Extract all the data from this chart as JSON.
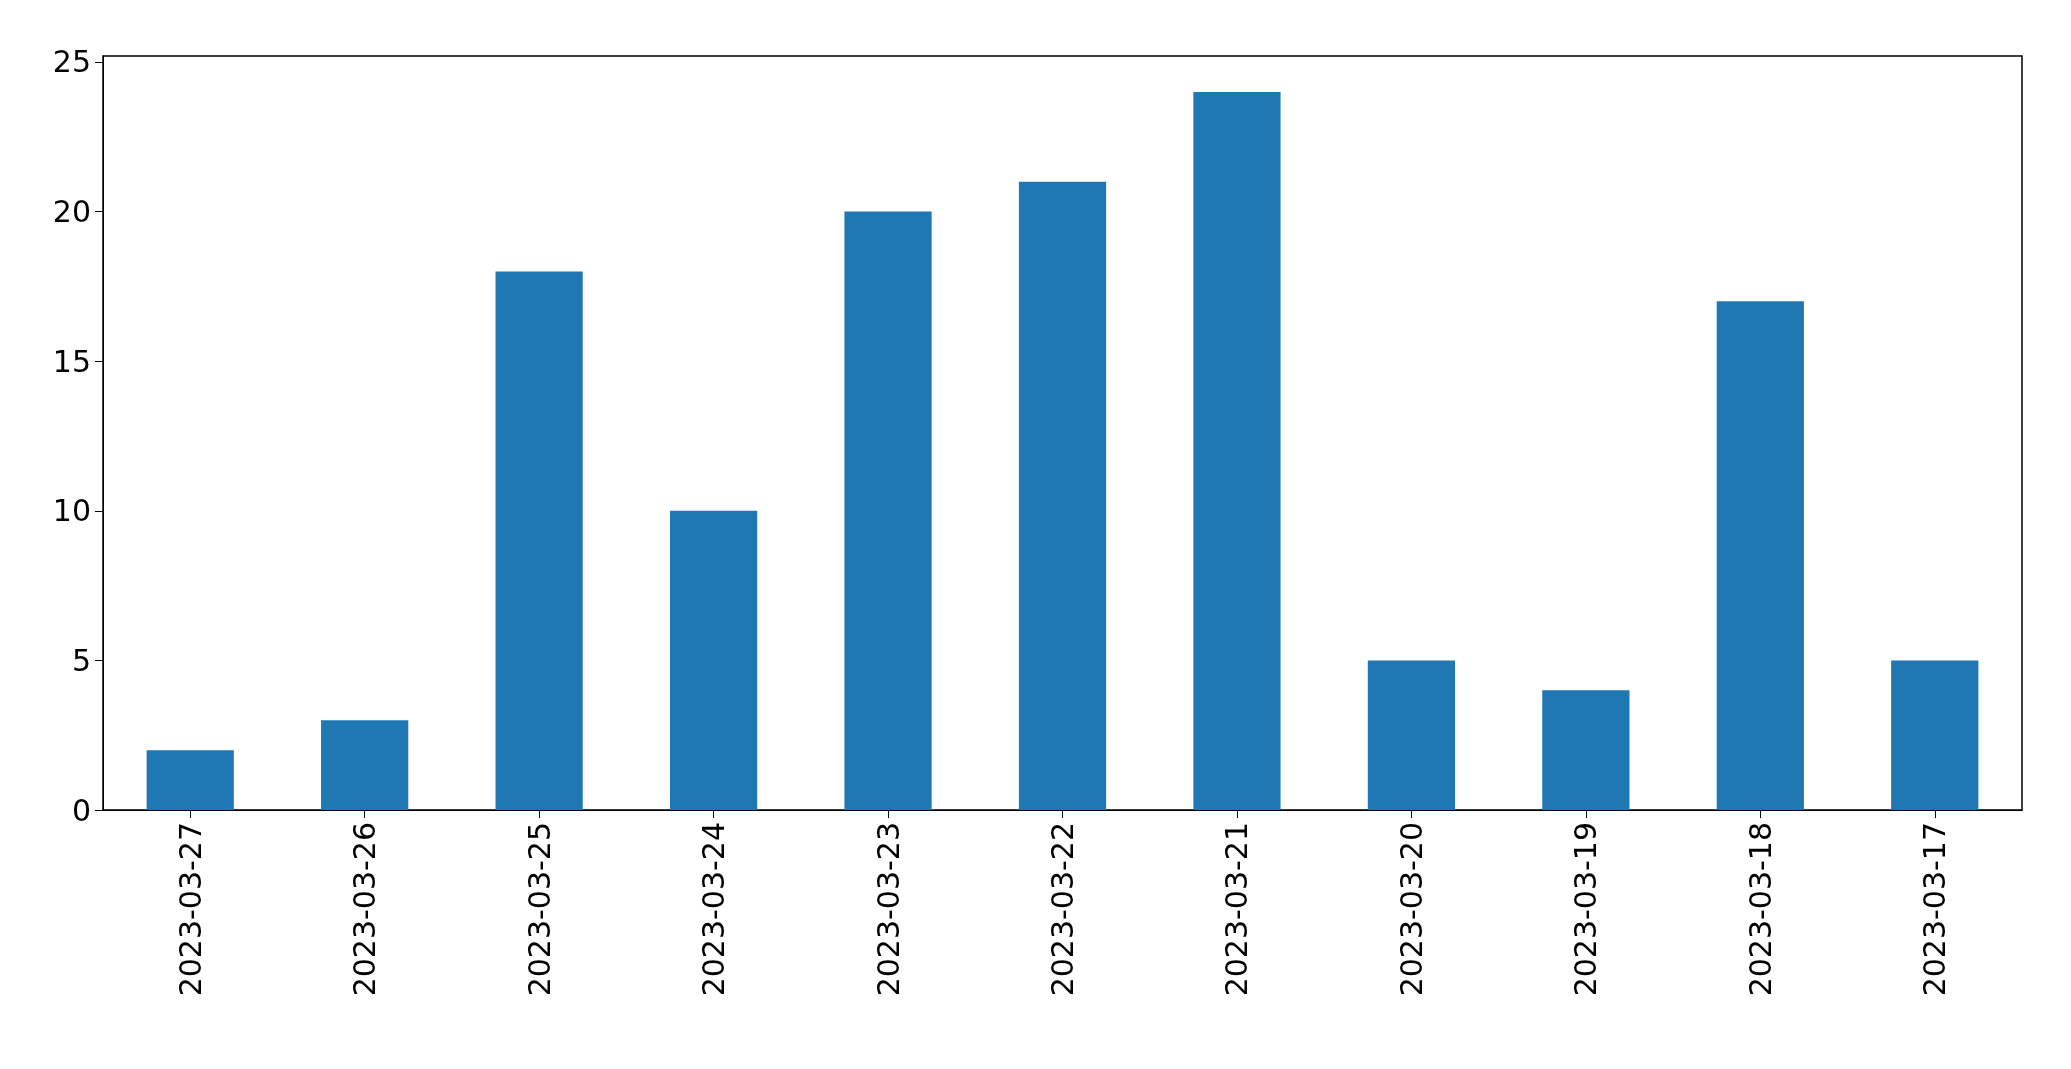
{
  "chart_data": {
    "type": "bar",
    "categories": [
      "2023-03-27",
      "2023-03-26",
      "2023-03-25",
      "2023-03-24",
      "2023-03-23",
      "2023-03-22",
      "2023-03-21",
      "2023-03-20",
      "2023-03-19",
      "2023-03-18",
      "2023-03-17"
    ],
    "values": [
      2,
      3,
      18,
      10,
      20,
      21,
      24,
      5,
      4,
      17,
      5
    ],
    "color": "#1f77b4",
    "ylim": [
      0,
      25.2
    ],
    "yticks": [
      0,
      5,
      10,
      15,
      20,
      25
    ],
    "grid": false
  }
}
